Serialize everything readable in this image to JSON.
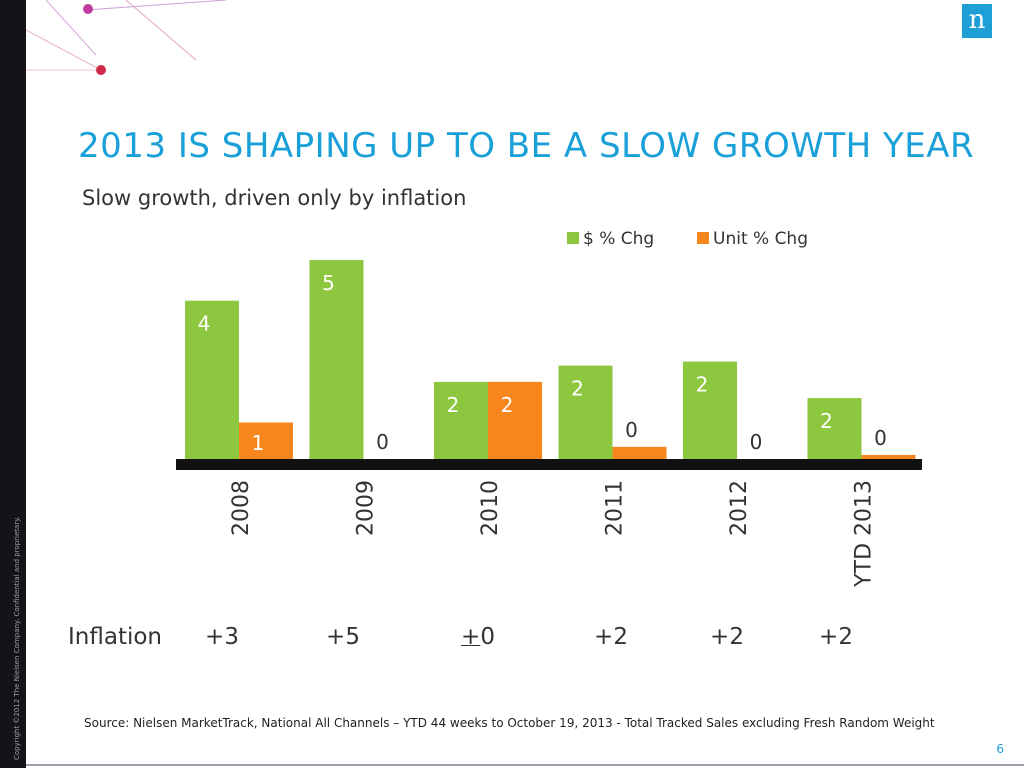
{
  "slide": {
    "title": "2013 IS SHAPING UP TO BE A SLOW GROWTH YEAR",
    "subtitle": "Slow growth, driven only by inflation",
    "copyright": "Copyright ©2012 The Nielsen Company. Confidential and proprietary.",
    "logo_text": "n",
    "source": "Source: Nielsen MarketTrack, National All Channels – YTD 44 weeks to October 19, 2013  - Total Tracked Sales excluding Fresh Random Weight",
    "page_number": "6"
  },
  "inflation": {
    "label": "Inflation",
    "values": [
      {
        "prefix": "",
        "text": "+3"
      },
      {
        "prefix": "",
        "text": "+5"
      },
      {
        "prefix": "+",
        "text": "0"
      },
      {
        "prefix": "",
        "text": "+2"
      },
      {
        "prefix": "",
        "text": "+2"
      },
      {
        "prefix": "",
        "text": "+2"
      }
    ]
  },
  "chart_data": {
    "type": "bar",
    "categories": [
      "2008",
      "2009",
      "2010",
      "2011",
      "2012",
      "YTD 2013"
    ],
    "series": [
      {
        "name": "$ % Chg",
        "color": "#8dc63f",
        "values": [
          3.9,
          4.9,
          1.9,
          2.3,
          2.4,
          1.5
        ],
        "labels": [
          "4",
          "5",
          "2",
          "2",
          "2",
          "2"
        ]
      },
      {
        "name": "Unit % Chg",
        "color": "#f7861c",
        "values": [
          0.9,
          0.0,
          1.9,
          0.3,
          0.0,
          0.1
        ],
        "labels": [
          "1",
          "0",
          "2",
          "0",
          "0",
          "0"
        ]
      }
    ],
    "ylim": [
      0,
      5
    ],
    "legend": "top-right",
    "grid": false
  }
}
